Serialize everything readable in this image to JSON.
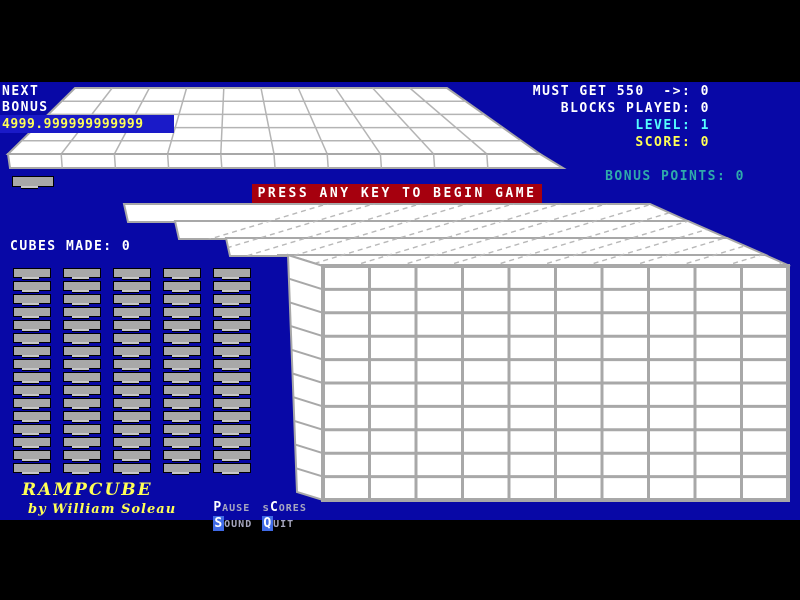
{
  "hud": {
    "next_label": "NEXT",
    "bonus_label": "BONUS",
    "bonus_value": "4999.999999999999",
    "stats": [
      {
        "id": "must-get",
        "text": "MUST GET 550  ->: 0",
        "color": "#ffffff"
      },
      {
        "id": "blocks-played",
        "text": "BLOCKS PLAYED: 0",
        "color": "#ffffff"
      },
      {
        "id": "level",
        "text": "LEVEL: 1",
        "color": "#55ffff"
      },
      {
        "id": "score",
        "text": "SCORE: 0",
        "color": "#ffff55"
      }
    ],
    "bonus_points_text": "BONUS POINTS: 0",
    "cubes_made_text": "CUBES MADE: 0"
  },
  "banner": {
    "text": "PRESS ANY KEY TO BEGIN GAME",
    "bg_color": "#a6000e"
  },
  "title": {
    "name": "RAMPCUBE",
    "author": "by William Soleau"
  },
  "menu": {
    "items": [
      {
        "id": "pause",
        "pre": "",
        "key": "P",
        "rest": "AUSE",
        "key_highlight": false
      },
      {
        "id": "scores",
        "pre": "s",
        "key": "C",
        "rest": "ORES",
        "key_highlight": false
      },
      {
        "id": "sound",
        "pre": "",
        "key": "S",
        "rest": "OUND",
        "key_highlight": true
      },
      {
        "id": "quit",
        "pre": "",
        "key": "Q",
        "rest": "UIT",
        "key_highlight": true
      }
    ]
  },
  "stacks": {
    "columns": 5,
    "blocks_per_column": 16
  },
  "board": {
    "front_columns": 10,
    "front_rows": 10,
    "ramp_columns": 10,
    "ramp_rows": 5
  },
  "colors": {
    "background_blue": "#0808a6",
    "highlight_blue": "#1a1ac8",
    "banner_red": "#a6000e",
    "score_yellow": "#ffff55",
    "level_cyan": "#55ffff",
    "bonus_teal": "#2faaaa",
    "block_gray": "#a8a8a8",
    "grid_line_gray": "#a8a8a8",
    "surface_white": "#ffffff",
    "menu_key_bg": "#3f6ae6"
  }
}
